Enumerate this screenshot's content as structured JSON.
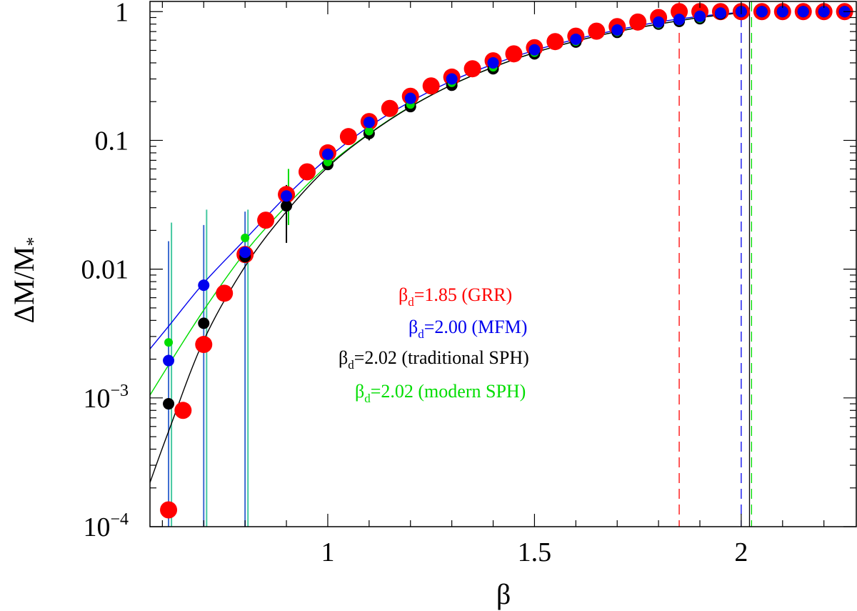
{
  "chart_data": {
    "type": "scatter",
    "xlabel": "β",
    "ylabel": "ΔM/M",
    "ylabel_sub": "*",
    "xscale": "linear",
    "yscale": "log",
    "xlim": [
      0.57,
      2.28
    ],
    "ylim": [
      0.0001,
      1.2
    ],
    "x_ticks": [
      {
        "value": 1,
        "label": "1"
      },
      {
        "value": 1.5,
        "label": "1.5"
      },
      {
        "value": 2,
        "label": "2"
      }
    ],
    "y_ticks": [
      {
        "value": 0.0001,
        "base": "10",
        "exp": "−4"
      },
      {
        "value": 0.001,
        "base": "10",
        "exp": "−3"
      },
      {
        "value": 0.01,
        "base": "0.01",
        "exp": ""
      },
      {
        "value": 0.1,
        "base": "0.1",
        "exp": ""
      },
      {
        "value": 1,
        "base": "1",
        "exp": ""
      }
    ],
    "series": [
      {
        "name": "GRR",
        "color": "#ff0000",
        "marker_size": "large",
        "beta_d": 1.85,
        "legend_prefix": "β",
        "legend_sub": "d",
        "legend_suffix": "=1.85 (GRR)",
        "x": [
          0.615,
          0.65,
          0.7,
          0.75,
          0.8,
          0.85,
          0.9,
          0.95,
          1.0,
          1.05,
          1.1,
          1.15,
          1.2,
          1.25,
          1.3,
          1.35,
          1.4,
          1.45,
          1.5,
          1.55,
          1.6,
          1.65,
          1.7,
          1.75,
          1.8,
          1.85,
          1.9,
          1.95,
          2.0,
          2.05,
          2.1,
          2.15,
          2.2,
          2.25
        ],
        "y": [
          0.000135,
          0.0008,
          0.0026,
          0.0065,
          0.013,
          0.024,
          0.038,
          0.057,
          0.08,
          0.107,
          0.14,
          0.177,
          0.22,
          0.265,
          0.31,
          0.36,
          0.415,
          0.47,
          0.525,
          0.585,
          0.645,
          0.705,
          0.765,
          0.83,
          0.9,
          1.0,
          1.0,
          1.0,
          1.0,
          1.0,
          1.0,
          1.0,
          1.0,
          1.0
        ]
      },
      {
        "name": "traditional SPH",
        "color": "#000000",
        "marker_size": "medium",
        "beta_d": 2.02,
        "legend_prefix": "β",
        "legend_sub": "d",
        "legend_suffix": "=2.02 (traditional SPH)",
        "x": [
          0.615,
          0.7,
          0.8,
          0.9,
          1.0,
          1.1,
          1.2,
          1.3,
          1.4,
          1.5,
          1.6,
          1.7,
          1.8,
          1.85,
          1.9,
          1.95,
          2.0,
          2.05,
          2.1,
          2.15,
          2.2,
          2.25
        ],
        "y": [
          0.0009,
          0.0038,
          0.0125,
          0.031,
          0.065,
          0.113,
          0.183,
          0.268,
          0.36,
          0.47,
          0.58,
          0.69,
          0.8,
          0.84,
          0.88,
          0.96,
          1.0,
          1.0,
          1.0,
          1.0,
          1.0,
          1.0
        ]
      },
      {
        "name": "modern SPH",
        "color": "#00dd00",
        "marker_size": "small",
        "beta_d": 2.02,
        "legend_prefix": "β",
        "legend_sub": "d",
        "legend_suffix": "=2.02 (modern SPH)",
        "x": [
          0.615,
          0.8,
          1.0,
          1.1,
          1.2,
          1.3,
          1.4,
          1.5,
          1.6,
          1.7,
          1.8,
          1.85,
          1.9,
          1.95,
          2.0,
          2.05,
          2.1,
          2.15,
          2.2,
          2.25
        ],
        "y": [
          0.0027,
          0.0175,
          0.068,
          0.118,
          0.19,
          0.28,
          0.37,
          0.48,
          0.585,
          0.695,
          0.8,
          0.845,
          0.885,
          0.96,
          1.0,
          1.0,
          1.0,
          1.0,
          1.0,
          1.0
        ]
      },
      {
        "name": "MFM",
        "color": "#0000ee",
        "marker_size": "medium",
        "beta_d": 2.0,
        "legend_prefix": "β",
        "legend_sub": "d",
        "legend_suffix": "=2.00 (MFM)",
        "x": [
          0.615,
          0.7,
          0.8,
          0.9,
          1.0,
          1.1,
          1.2,
          1.3,
          1.4,
          1.5,
          1.6,
          1.7,
          1.8,
          1.85,
          1.9,
          1.95,
          2.0,
          2.05,
          2.1,
          2.15,
          2.2,
          2.25
        ],
        "y": [
          0.00195,
          0.0075,
          0.0135,
          0.037,
          0.078,
          0.138,
          0.212,
          0.3,
          0.4,
          0.505,
          0.61,
          0.72,
          0.83,
          0.87,
          0.92,
          0.975,
          1.0,
          1.0,
          1.0,
          1.0,
          1.0,
          1.0
        ]
      }
    ],
    "fit_curves": [
      {
        "name": "MFM fit",
        "color": "#0000ee",
        "x": [
          0.57,
          0.615,
          0.7,
          0.8,
          0.9,
          1.0,
          1.1,
          1.2,
          1.3,
          1.4,
          1.5,
          1.6,
          1.7,
          1.8,
          1.9,
          2.0,
          2.02
        ],
        "y": [
          0.0024,
          0.0036,
          0.0078,
          0.017,
          0.037,
          0.073,
          0.128,
          0.2,
          0.29,
          0.39,
          0.5,
          0.61,
          0.72,
          0.83,
          0.92,
          0.99,
          1.0
        ]
      },
      {
        "name": "modern SPH fit",
        "color": "#00dd00",
        "x": [
          0.57,
          0.615,
          0.7,
          0.8,
          0.9,
          1.0,
          1.1,
          1.2,
          1.3,
          1.4,
          1.5,
          1.6,
          1.7,
          1.8,
          1.9,
          2.0,
          2.02
        ],
        "y": [
          0.00105,
          0.0018,
          0.0048,
          0.0135,
          0.031,
          0.064,
          0.113,
          0.183,
          0.27,
          0.37,
          0.48,
          0.59,
          0.7,
          0.8,
          0.9,
          0.98,
          1.0
        ]
      },
      {
        "name": "traditional SPH fit",
        "color": "#000000",
        "x": [
          0.57,
          0.615,
          0.7,
          0.8,
          0.9,
          1.0,
          1.1,
          1.2,
          1.3,
          1.4,
          1.5,
          1.6,
          1.7,
          1.8,
          1.9,
          2.0,
          2.02
        ],
        "y": [
          0.00022,
          0.00055,
          0.0028,
          0.0105,
          0.028,
          0.062,
          0.112,
          0.182,
          0.27,
          0.37,
          0.48,
          0.59,
          0.7,
          0.8,
          0.9,
          0.98,
          1.0
        ]
      }
    ],
    "error_bars": [
      {
        "color": "#3a6ad0",
        "x": 0.615,
        "y_low": 0.0001,
        "y_high": 0.0165
      },
      {
        "color": "#44c8a0",
        "x": 0.622,
        "y_low": 0.0001,
        "y_high": 0.023
      },
      {
        "color": "#3a6ad0",
        "x": 0.7,
        "y_low": 0.0001,
        "y_high": 0.022
      },
      {
        "color": "#44c8a0",
        "x": 0.707,
        "y_low": 0.0001,
        "y_high": 0.029
      },
      {
        "color": "#3a6ad0",
        "x": 0.8,
        "y_low": 0.0001,
        "y_high": 0.028
      },
      {
        "color": "#44c8a0",
        "x": 0.807,
        "y_low": 0.0001,
        "y_high": 0.029
      },
      {
        "color": "#000000",
        "x": 0.9,
        "y_low": 0.016,
        "y_high": 0.045
      },
      {
        "color": "#00dd00",
        "x": 0.905,
        "y_low": 0.022,
        "y_high": 0.06
      },
      {
        "color": "#000000",
        "x": 1.1,
        "y_low": 0.1,
        "y_high": 0.13
      }
    ],
    "vertical_lines": [
      {
        "name": "GRR beta_d",
        "x": 1.85,
        "color": "#ff0000",
        "style": "dashed"
      },
      {
        "name": "MFM beta_d",
        "x": 2.0,
        "color": "#0000ee",
        "style": "dashed"
      },
      {
        "name": "traditional SPH beta_d",
        "x": 2.02,
        "color": "#000000",
        "style": "solid"
      },
      {
        "name": "modern SPH beta_d",
        "x": 2.025,
        "color": "#00dd00",
        "style": "dashed"
      }
    ]
  }
}
